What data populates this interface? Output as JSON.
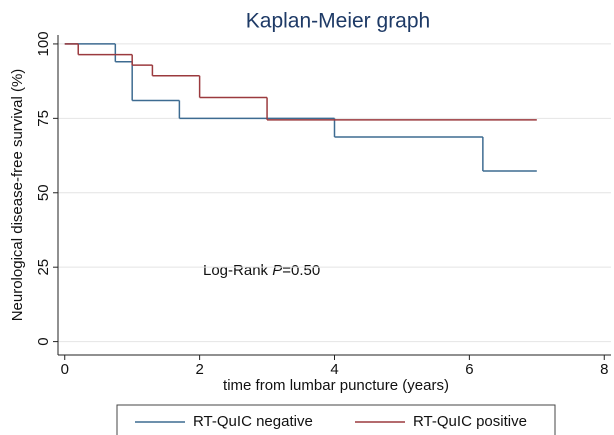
{
  "chart_data": {
    "type": "step",
    "title": "Kaplan-Meier graph",
    "x_label": "time from lumbar puncture (years)",
    "y_label": "Neurological disease-free survival (%)",
    "annotation": {
      "prefix": "Log-Rank ",
      "italic": "P",
      "suffix": "=0.50"
    },
    "xlim": [
      -0.1,
      8.1
    ],
    "xticks": [
      0,
      2,
      4,
      6,
      8
    ],
    "ylim": [
      -4.5,
      103
    ],
    "yticks": [
      0,
      25,
      50,
      75,
      100
    ],
    "grid": true,
    "legend": "bottom",
    "series": [
      {
        "name": "RT-QuIC negative",
        "color": "#3d6b91",
        "x": [
          0,
          0.75,
          1.0,
          1.7,
          4.0,
          6.2,
          7.0
        ],
        "values": [
          100,
          94,
          81,
          75,
          68.75,
          57.3,
          57.3
        ]
      },
      {
        "name": "RT-QuIC positive",
        "color": "#9b3a3e",
        "x": [
          0,
          0.2,
          1.0,
          1.3,
          2.0,
          3.0,
          7.0
        ],
        "values": [
          100,
          96.4,
          92.9,
          89.3,
          82,
          74.5,
          74.5
        ]
      }
    ]
  }
}
